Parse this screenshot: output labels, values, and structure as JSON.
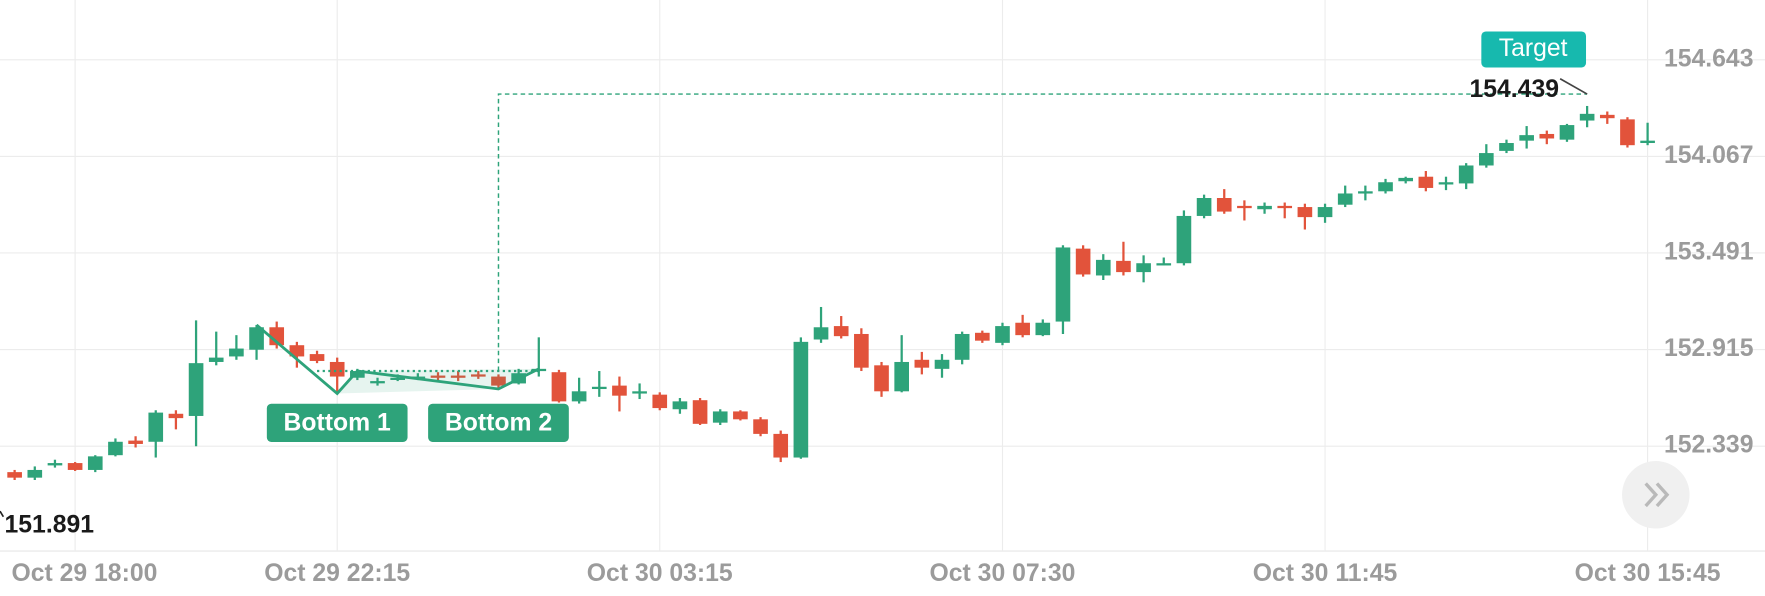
{
  "chart_data": {
    "type": "candlestick",
    "categories": [
      null,
      null,
      null,
      "Oct 29 18:00",
      null,
      null,
      null,
      null,
      null,
      null,
      null,
      null,
      null,
      null,
      null,
      null,
      "Oct 29 22:15",
      null,
      null,
      null,
      null,
      null,
      null,
      null,
      null,
      null,
      null,
      null,
      null,
      null,
      null,
      null,
      "Oct 30 03:15",
      null,
      null,
      null,
      null,
      null,
      null,
      null,
      null,
      null,
      null,
      null,
      null,
      null,
      null,
      null,
      null,
      "Oct 30 07:30",
      null,
      null,
      null,
      null,
      null,
      null,
      null,
      null,
      null,
      null,
      null,
      null,
      null,
      null,
      null,
      "Oct 30 11:45",
      null,
      null,
      null,
      null,
      null,
      null,
      null,
      null,
      null,
      null,
      null,
      null,
      null,
      null,
      null,
      "Oct 30 15:45"
    ],
    "open": [
      152.184,
      152.151,
      152.224,
      152.238,
      152.197,
      152.285,
      152.372,
      152.365,
      152.532,
      152.519,
      152.841,
      152.874,
      152.914,
      153.048,
      152.941,
      152.888,
      152.841,
      152.747,
      152.72,
      152.74,
      152.747,
      152.76,
      152.76,
      152.767,
      152.754,
      152.713,
      152.787,
      152.78,
      152.606,
      152.68,
      152.7,
      152.66,
      152.646,
      152.559,
      152.613,
      152.479,
      152.546,
      152.499,
      152.412,
      152.271,
      152.975,
      153.055,
      153.008,
      152.821,
      152.666,
      152.854,
      152.8,
      152.854,
      153.015,
      152.955,
      153.075,
      153.001,
      153.082,
      153.517,
      153.357,
      153.444,
      153.377,
      153.424,
      153.43,
      153.712,
      153.819,
      153.772,
      153.752,
      153.772,
      153.765,
      153.705,
      153.779,
      153.846,
      153.859,
      153.919,
      153.946,
      153.906,
      153.906,
      154.013,
      154.1,
      154.161,
      154.201,
      154.167,
      154.281,
      154.315,
      154.288,
      154.147
    ],
    "high": [
      152.197,
      152.218,
      152.258,
      152.244,
      152.285,
      152.385,
      152.398,
      152.553,
      152.553,
      153.089,
      153.022,
      153.001,
      153.062,
      153.082,
      152.961,
      152.908,
      152.867,
      152.8,
      152.747,
      152.767,
      152.774,
      152.78,
      152.787,
      152.787,
      152.767,
      152.8,
      152.988,
      152.794,
      152.747,
      152.787,
      152.754,
      152.713,
      152.66,
      152.626,
      152.626,
      152.559,
      152.553,
      152.512,
      152.432,
      152.988,
      153.169,
      153.115,
      153.042,
      152.841,
      153.001,
      152.901,
      152.888,
      153.022,
      153.028,
      153.075,
      153.122,
      153.095,
      153.537,
      153.537,
      153.484,
      153.558,
      153.477,
      153.464,
      153.745,
      153.839,
      153.872,
      153.805,
      153.792,
      153.792,
      153.785,
      153.785,
      153.893,
      153.893,
      153.933,
      153.946,
      153.98,
      153.946,
      154.027,
      154.14,
      154.167,
      154.248,
      154.221,
      154.261,
      154.368,
      154.335,
      154.301,
      154.268
    ],
    "low": [
      152.137,
      152.137,
      152.211,
      152.191,
      152.184,
      152.278,
      152.331,
      152.271,
      152.439,
      152.338,
      152.821,
      152.854,
      152.854,
      152.921,
      152.807,
      152.834,
      152.653,
      152.733,
      152.7,
      152.727,
      152.733,
      152.727,
      152.727,
      152.74,
      152.68,
      152.707,
      152.754,
      152.599,
      152.593,
      152.633,
      152.546,
      152.62,
      152.553,
      152.532,
      152.465,
      152.465,
      152.492,
      152.398,
      152.244,
      152.264,
      152.955,
      152.981,
      152.787,
      152.633,
      152.66,
      152.767,
      152.747,
      152.827,
      152.955,
      152.941,
      152.988,
      152.995,
      153.008,
      153.35,
      153.33,
      153.357,
      153.316,
      153.417,
      153.417,
      153.698,
      153.725,
      153.685,
      153.725,
      153.698,
      153.631,
      153.671,
      153.765,
      153.805,
      153.846,
      153.906,
      153.859,
      153.866,
      153.872,
      154.0,
      154.087,
      154.114,
      154.14,
      154.154,
      154.241,
      154.261,
      154.12,
      154.134
    ],
    "close": [
      152.151,
      152.197,
      152.238,
      152.197,
      152.278,
      152.365,
      152.352,
      152.539,
      152.506,
      152.834,
      152.867,
      152.921,
      153.048,
      152.941,
      152.874,
      152.847,
      152.754,
      152.787,
      152.727,
      152.747,
      152.754,
      152.747,
      152.754,
      152.754,
      152.7,
      152.774,
      152.8,
      152.606,
      152.666,
      152.693,
      152.64,
      152.666,
      152.566,
      152.606,
      152.472,
      152.546,
      152.499,
      152.412,
      152.271,
      152.961,
      153.048,
      152.995,
      152.807,
      152.666,
      152.841,
      152.807,
      152.854,
      153.008,
      152.968,
      153.055,
      153.001,
      153.075,
      153.524,
      153.363,
      153.45,
      153.377,
      153.43,
      153.43,
      153.712,
      153.819,
      153.738,
      153.765,
      153.772,
      153.759,
      153.705,
      153.765,
      153.846,
      153.859,
      153.913,
      153.939,
      153.879,
      153.913,
      154.013,
      154.087,
      154.147,
      154.194,
      154.174,
      154.254,
      154.321,
      154.295,
      154.134,
      154.161
    ],
    "up_color": "#2ea37a",
    "down_color": "#e2533b",
    "ylim": [
      151.7,
      155.0
    ],
    "yticks": [
      152.339,
      152.915,
      153.491,
      154.067,
      154.643
    ],
    "grid": true,
    "annotations": {
      "target_label": "Target",
      "target_value": 154.439,
      "bottom_labels": [
        "Bottom 1",
        "Bottom 2"
      ],
      "low_value": 151.891
    }
  }
}
